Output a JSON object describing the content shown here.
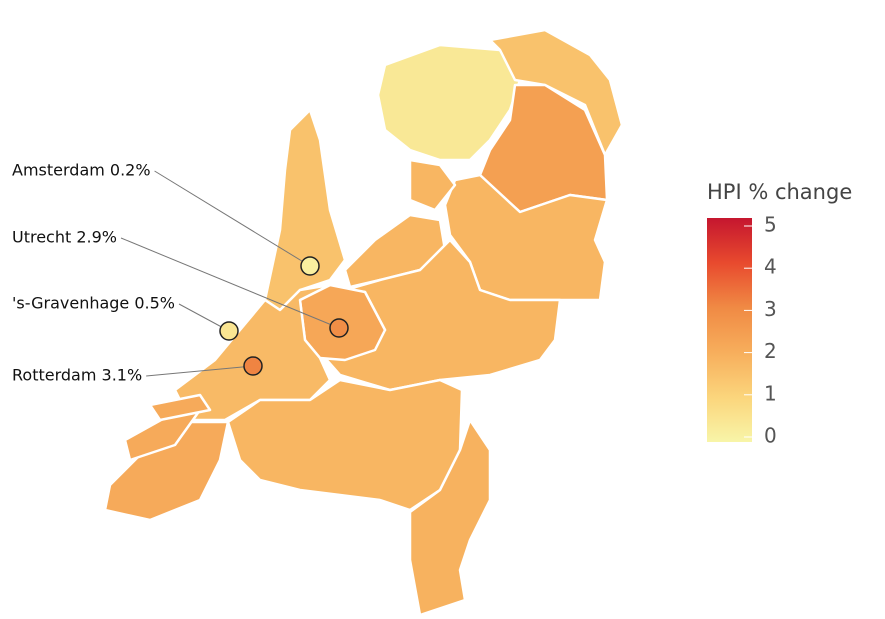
{
  "chart_data": {
    "type": "choropleth",
    "legend_title": "HPI % change",
    "colorscale": [
      "#f8f5a8",
      "#fbd57c",
      "#f7ae5c",
      "#f08a44",
      "#e84a2e",
      "#c5162f"
    ],
    "clim": [
      0,
      5
    ],
    "cticks": [
      0,
      1,
      2,
      3,
      4,
      5
    ],
    "region_values": [
      0.4,
      1.5,
      2.4,
      1.8,
      1.8,
      1.8,
      1.8,
      2.2,
      1.5,
      1.7,
      2.1,
      1.8,
      1.9
    ],
    "cities": [
      {
        "label": "Amsterdam 0.2%",
        "value": 0.2
      },
      {
        "label": "Utrecht 2.9%",
        "value": 2.9
      },
      {
        "label": "'s-Gravenhage 0.5%",
        "value": 0.5
      },
      {
        "label": "Rotterdam 3.1%",
        "value": 3.1
      }
    ]
  }
}
